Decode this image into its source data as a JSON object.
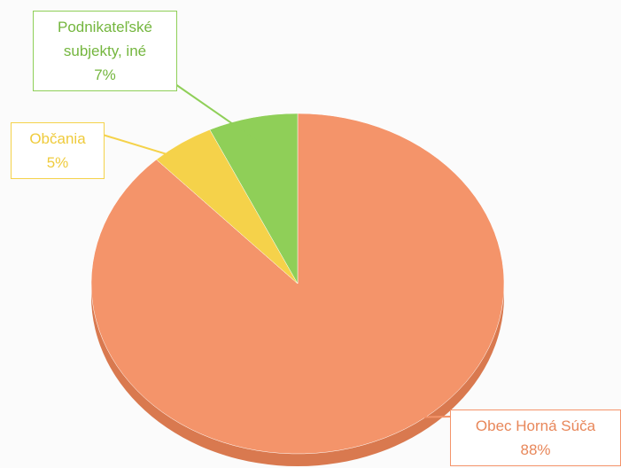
{
  "chart_data": {
    "type": "pie",
    "categories": [
      "Obec Horná Súča",
      "Občania",
      "Podnikateľské subjekty, iné"
    ],
    "values": [
      88,
      5,
      7
    ],
    "value_labels": [
      "88%",
      "5%",
      "7%"
    ],
    "colors": [
      "#f4946a",
      "#f5d24a",
      "#8fcf58"
    ]
  }
}
